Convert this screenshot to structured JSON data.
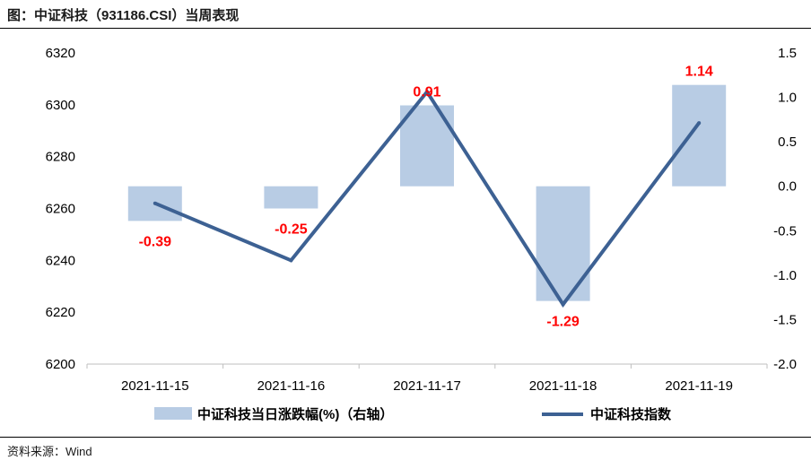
{
  "title": "图：中证科技（931186.CSI）当周表现",
  "source": "资料来源：Wind",
  "colors": {
    "bar": "#b8cce4",
    "line": "#3d6193",
    "label": "#ff0000"
  },
  "chart_data": {
    "type": "bar+line",
    "categories": [
      "2021-11-15",
      "2021-11-16",
      "2021-11-17",
      "2021-11-18",
      "2021-11-19"
    ],
    "series": [
      {
        "name": "中证科技当日涨跌幅(%)（右轴）",
        "type": "bar",
        "axis": "right",
        "values": [
          -0.39,
          -0.25,
          0.91,
          -1.29,
          1.14
        ]
      },
      {
        "name": "中证科技指数",
        "type": "line",
        "axis": "left",
        "values": [
          6262,
          6240,
          6305,
          6223,
          6293
        ]
      }
    ],
    "data_labels": [
      "-0.39",
      "-0.25",
      "0.91",
      "-1.29",
      "1.14"
    ],
    "left_axis": {
      "min": 6200,
      "max": 6320,
      "ticks": [
        "6200",
        "6220",
        "6240",
        "6260",
        "6280",
        "6300",
        "6320"
      ]
    },
    "right_axis": {
      "min": -2.0,
      "max": 1.5,
      "ticks": [
        "-2.0",
        "-1.5",
        "-1.0",
        "-0.5",
        "0.0",
        "0.5",
        "1.0",
        "1.5"
      ]
    },
    "legend_position": "bottom"
  }
}
